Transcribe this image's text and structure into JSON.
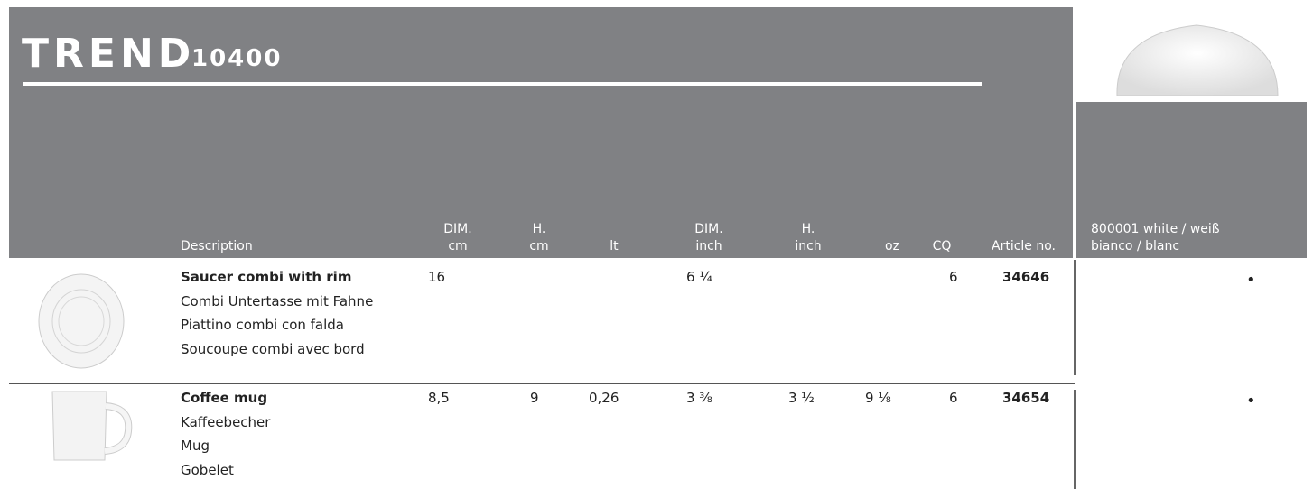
{
  "header": {
    "title": "TREND",
    "number": "10400"
  },
  "table": {
    "columns": [
      [
        "Description"
      ],
      [
        "DIM.",
        "cm"
      ],
      [
        "H.",
        "cm"
      ],
      [
        "lt"
      ],
      [
        "DIM.",
        "inch"
      ],
      [
        "H.",
        "inch"
      ],
      [
        "oz"
      ],
      [
        "CQ"
      ],
      [
        "Article no."
      ]
    ],
    "color_column": [
      "800001 white / weiß",
      "bianco / blanc"
    ],
    "rows": [
      {
        "descriptions": [
          "Saucer combi with rim",
          "Combi Untertasse mit Fahne",
          "Piattino combi con falda",
          "Soucoupe combi avec bord"
        ],
        "values": [
          "16",
          null,
          null,
          "6 ¼",
          null,
          null,
          "6"
        ],
        "article": "34646",
        "mark": "•"
      },
      {
        "descriptions": [
          "Coffee mug",
          "Kaffeebecher",
          "Mug",
          "Gobelet"
        ],
        "values": [
          "8,5",
          "9",
          "0,26",
          "3 ⅜",
          "3 ½",
          "9 ⅛",
          "6"
        ],
        "article": "34654",
        "mark": "•"
      }
    ]
  }
}
